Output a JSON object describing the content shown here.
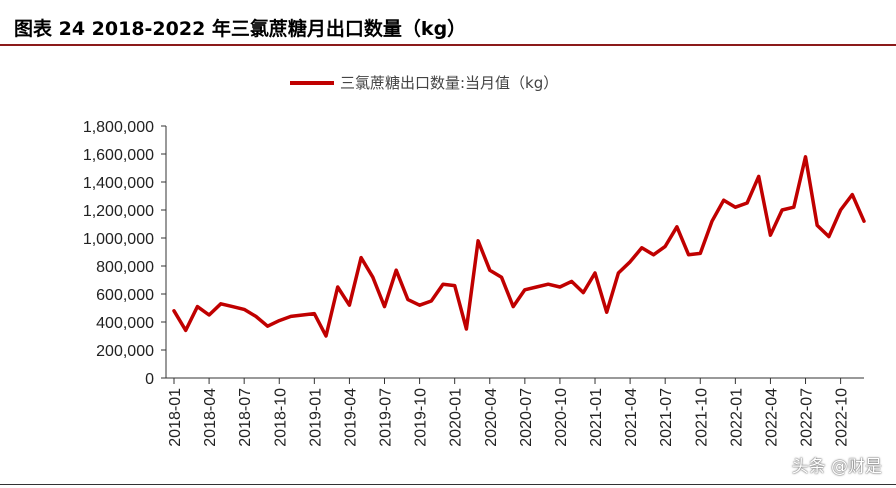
{
  "header": {
    "title": "图表 24 2018-2022 年三氯蔗糖月出口数量（kg）"
  },
  "watermark": "头条 @财是",
  "chart_data": {
    "type": "line",
    "legend_position": "top-center",
    "grid": false,
    "ylim": [
      0,
      1800000
    ],
    "y_ticks": [
      "1,800,000",
      "1,600,000",
      "1,400,000",
      "1,200,000",
      "1,000,000",
      "800,000",
      "600,000",
      "400,000",
      "200,000",
      "0"
    ],
    "y_tick_values": [
      1800000,
      1600000,
      1400000,
      1200000,
      1000000,
      800000,
      600000,
      400000,
      200000,
      0
    ],
    "x_tick_labels": [
      "2018-01",
      "2018-04",
      "2018-07",
      "2018-10",
      "2019-01",
      "2019-04",
      "2019-07",
      "2019-10",
      "2020-01",
      "2020-04",
      "2020-07",
      "2020-10",
      "2021-01",
      "2021-04",
      "2021-07",
      "2021-10",
      "2022-01",
      "2022-04",
      "2022-07",
      "2022-10"
    ],
    "x_tick_index": [
      0,
      3,
      6,
      9,
      12,
      15,
      18,
      21,
      24,
      27,
      30,
      33,
      36,
      39,
      42,
      45,
      48,
      51,
      54,
      57
    ],
    "series": [
      {
        "name": "三氯蔗糖出口数量:当月值（kg）",
        "color": "#c00000",
        "x": [
          "2018-01",
          "2018-02",
          "2018-03",
          "2018-04",
          "2018-05",
          "2018-06",
          "2018-07",
          "2018-08",
          "2018-09",
          "2018-10",
          "2018-11",
          "2018-12",
          "2019-01",
          "2019-02",
          "2019-03",
          "2019-04",
          "2019-05",
          "2019-06",
          "2019-07",
          "2019-08",
          "2019-09",
          "2019-10",
          "2019-11",
          "2019-12",
          "2020-01",
          "2020-02",
          "2020-03",
          "2020-04",
          "2020-05",
          "2020-06",
          "2020-07",
          "2020-08",
          "2020-09",
          "2020-10",
          "2020-11",
          "2020-12",
          "2021-01",
          "2021-02",
          "2021-03",
          "2021-04",
          "2021-05",
          "2021-06",
          "2021-07",
          "2021-08",
          "2021-09",
          "2021-10",
          "2021-11",
          "2021-12",
          "2022-01",
          "2022-02",
          "2022-03",
          "2022-04",
          "2022-05",
          "2022-06",
          "2022-07",
          "2022-08",
          "2022-09",
          "2022-10",
          "2022-11",
          "2022-12"
        ],
        "values": [
          480000,
          340000,
          510000,
          450000,
          530000,
          510000,
          490000,
          440000,
          370000,
          410000,
          440000,
          450000,
          460000,
          300000,
          650000,
          520000,
          860000,
          720000,
          510000,
          770000,
          560000,
          520000,
          550000,
          670000,
          660000,
          350000,
          980000,
          770000,
          720000,
          510000,
          630000,
          650000,
          670000,
          650000,
          690000,
          610000,
          750000,
          470000,
          750000,
          830000,
          930000,
          880000,
          940000,
          1080000,
          880000,
          890000,
          1120000,
          1270000,
          1220000,
          1250000,
          1440000,
          1020000,
          1200000,
          1220000,
          1580000,
          1090000,
          1010000,
          1200000,
          1310000,
          1120000
        ]
      }
    ]
  }
}
